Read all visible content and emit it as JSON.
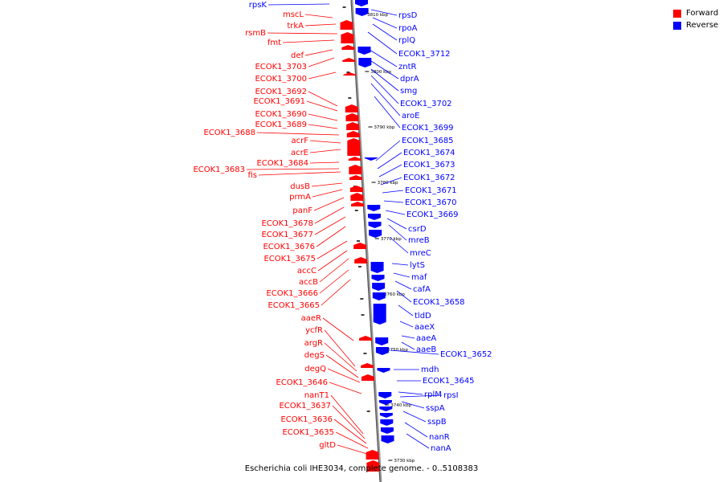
{
  "legend": {
    "forward_label": "Forward",
    "reverse_label": "Reverse",
    "forward_color": "#ff0000",
    "reverse_color": "#0000ff"
  },
  "caption": "Escherichia coli IHE3034, complete genome. - 0..5108383",
  "scale": {
    "ticks": [
      "3810 kbp",
      "3800 kbp",
      "3790 kbp",
      "3780 kbp",
      "3770 kbp",
      "3760 kbp",
      "3750 kbp",
      "3740 kbp",
      "3730 kbp"
    ]
  },
  "forward_genes": [
    "mscL",
    "trkA",
    "rsmB",
    "fmt",
    "def",
    "ECOK1_3703",
    "ECOK1_3700",
    "ECOK1_3692",
    "ECOK1_3691",
    "ECOK1_3690",
    "ECOK1_3689",
    "ECOK1_3688",
    "acrF",
    "acrE",
    "ECOK1_3684",
    "ECOK1_3683",
    "fis",
    "dusB",
    "prmA",
    "panF",
    "ECOK1_3678",
    "ECOK1_3677",
    "ECOK1_3676",
    "ECOK1_3675",
    "accC",
    "accB",
    "ECOK1_3666",
    "ECOK1_3665",
    "aaeR",
    "ycfR",
    "argR",
    "degS",
    "degQ",
    "ECOK1_3646",
    "nanT1",
    "ECOK1_3637",
    "ECOK1_3636",
    "ECOK1_3635",
    "gltD"
  ],
  "reverse_genes": [
    "rpsK",
    "rpsD",
    "rpoA",
    "rplQ",
    "ECOK1_3712",
    "zntR",
    "dprA",
    "smg",
    "ECOK1_3702",
    "aroE",
    "ECOK1_3699",
    "ECOK1_3685",
    "ECOK1_3674",
    "ECOK1_3673",
    "ECOK1_3672",
    "ECOK1_3671",
    "ECOK1_3670",
    "ECOK1_3669",
    "csrD",
    "mreB",
    "mreC",
    "lytS",
    "maf",
    "cafA",
    "ECOK1_3658",
    "tldD",
    "aaeX",
    "aaeA",
    "aaeB",
    "ECOK1_3652",
    "mdh",
    "ECOK1_3645",
    "rplM",
    "rpsI",
    "sspA",
    "sspB",
    "nanR",
    "nanA"
  ]
}
